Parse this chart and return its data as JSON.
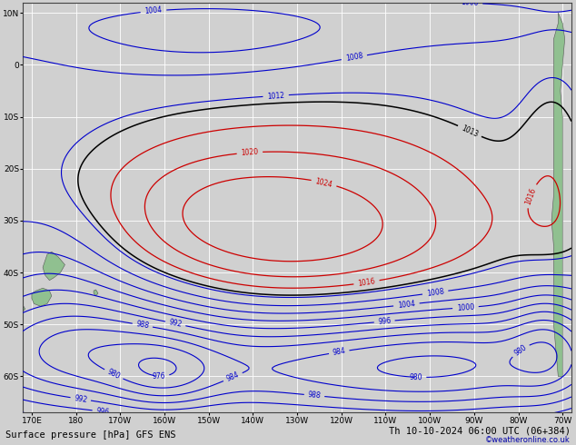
{
  "title_left": "Surface pressure [hPa] GFS ENS",
  "title_right": "Th 10-10-2024 06:00 UTC (06+384)",
  "copyright": "©weatheronline.co.uk",
  "background_color": "#d0d0d0",
  "land_color": "#90c090",
  "grid_color": "#ffffff",
  "figsize": [
    6.34,
    4.9
  ],
  "dpi": 100,
  "font_size_title": 7.5,
  "font_size_tick": 6.5,
  "font_size_label": 6,
  "border_color": "#444444",
  "text_color": "#000000"
}
